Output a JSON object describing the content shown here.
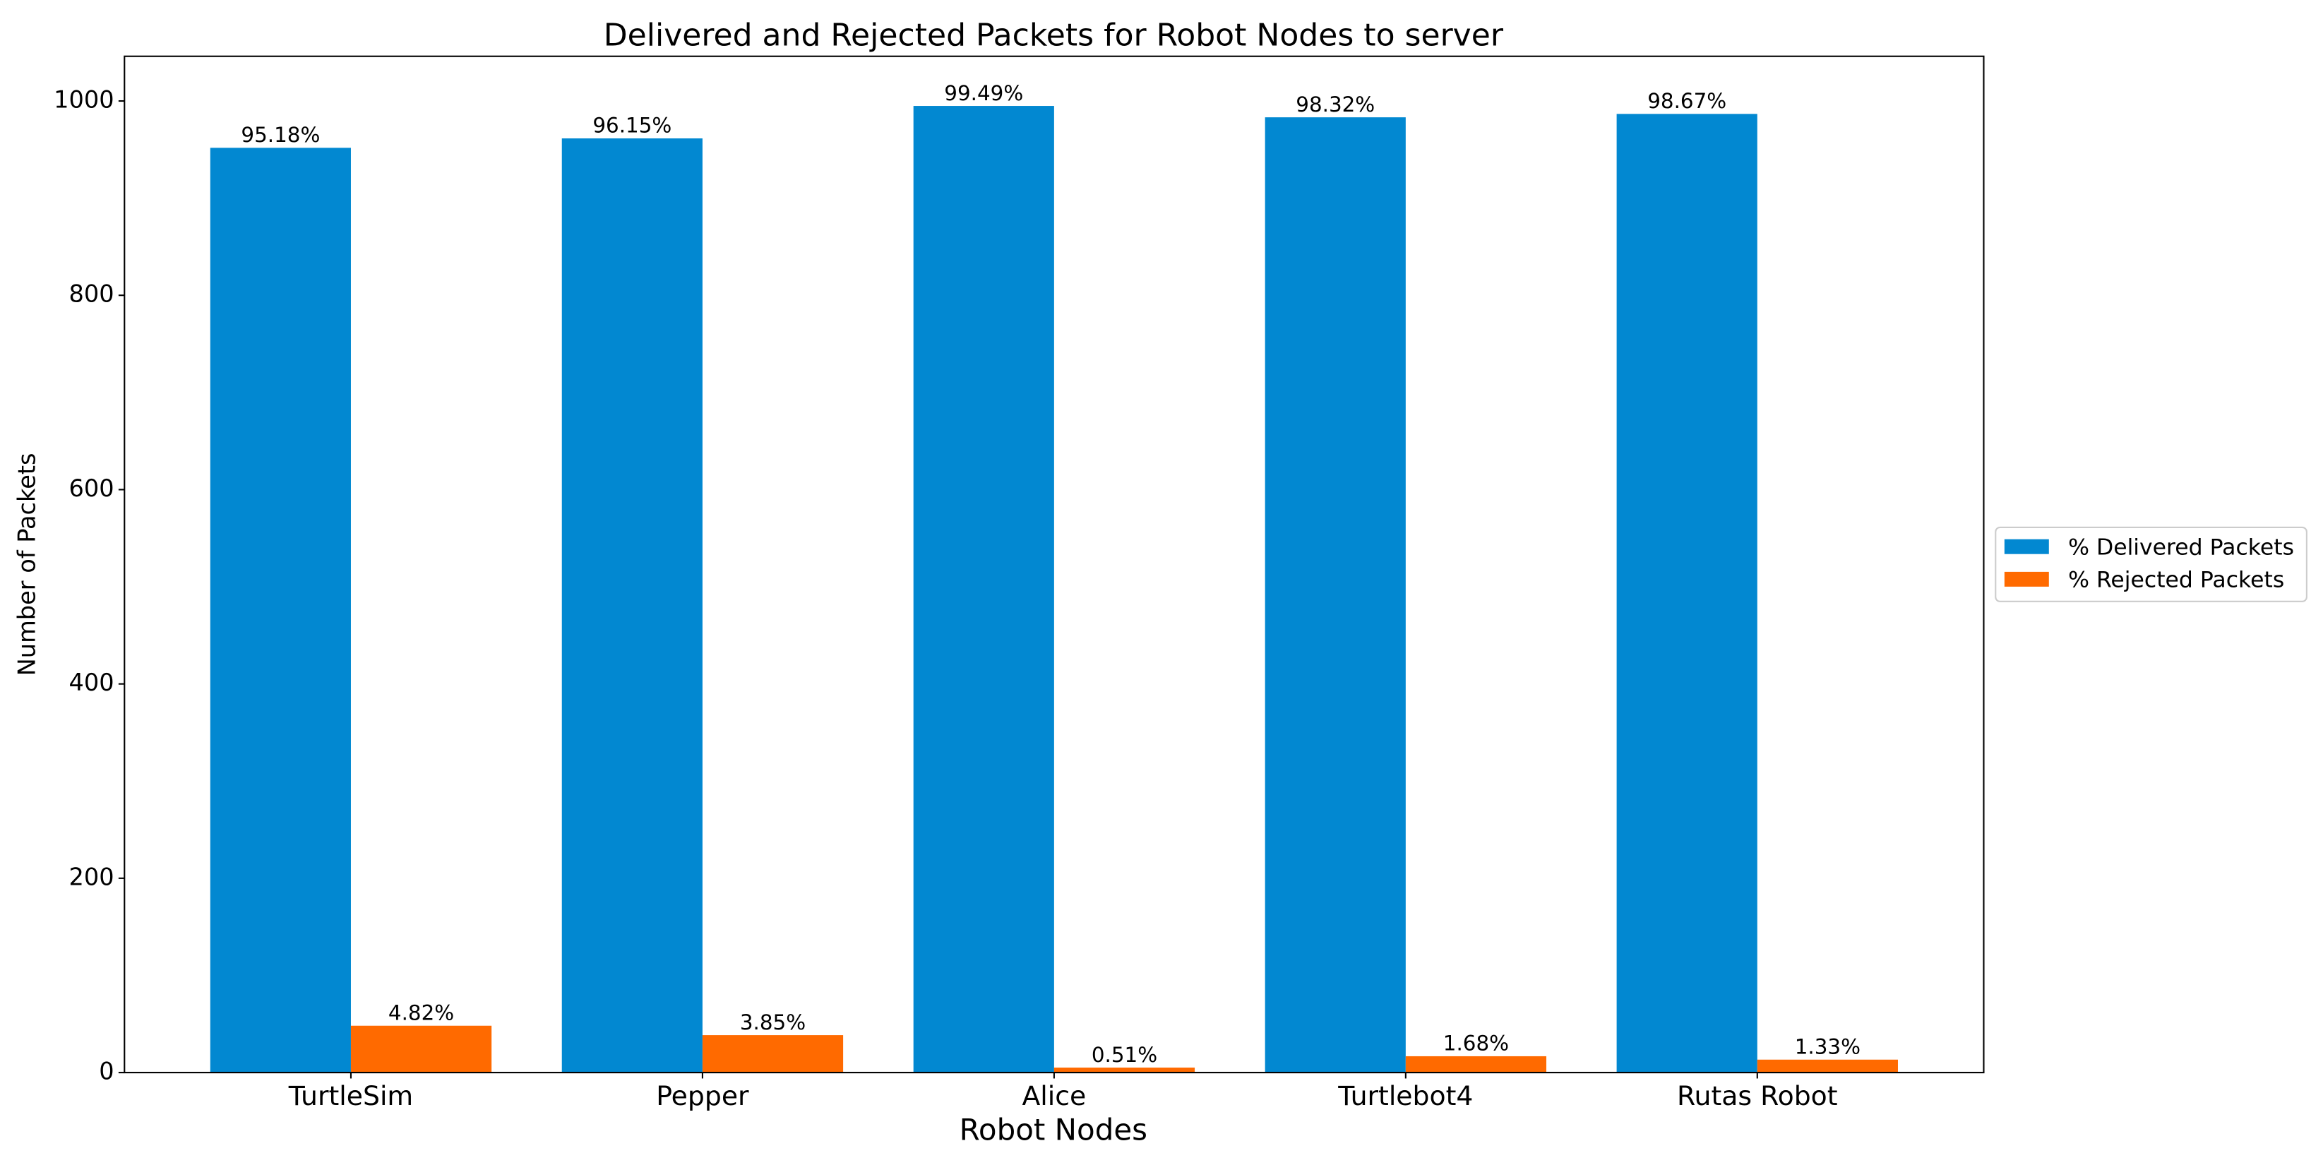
{
  "chart_data": {
    "type": "bar",
    "title": "Delivered and Rejected Packets for Robot Nodes to server",
    "x_label": "Robot Nodes",
    "y_label": "Number of Packets",
    "categories": [
      "TurtleSim",
      "Pepper",
      "Alice",
      "Turtlebot4",
      "Rutas Robot"
    ],
    "series": [
      {
        "name": "% Delivered Packets",
        "color": "#0288d1",
        "values": [
          951.8,
          961.5,
          994.9,
          983.2,
          986.7
        ],
        "value_labels": [
          "95.18%",
          "96.15%",
          "99.49%",
          "98.32%",
          "98.67%"
        ]
      },
      {
        "name": "% Rejected Packets",
        "color": "#ff6a00",
        "values": [
          48.2,
          38.5,
          5.1,
          16.8,
          13.3
        ],
        "value_labels": [
          "4.82%",
          "3.85%",
          "0.51%",
          "1.68%",
          "1.33%"
        ]
      }
    ],
    "ylim": [
      0,
      1046
    ],
    "yticks": [
      0,
      200,
      400,
      600,
      800,
      1000
    ],
    "legend": "outside-right",
    "grid": false
  }
}
